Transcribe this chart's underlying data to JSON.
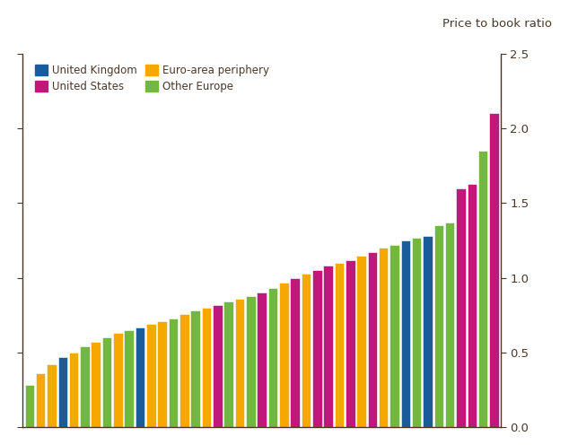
{
  "title": "Price to book ratio",
  "ylim": [
    0.0,
    2.5
  ],
  "yticks": [
    0.0,
    0.5,
    1.0,
    1.5,
    2.0,
    2.5
  ],
  "legend": [
    {
      "label": "United Kingdom",
      "color": "#1a5c9a"
    },
    {
      "label": "United States",
      "color": "#c0187a"
    },
    {
      "label": "Euro-area periphery",
      "color": "#f5a800"
    },
    {
      "label": "Other Europe",
      "color": "#72b840"
    }
  ],
  "bars": [
    {
      "value": 0.28,
      "color": "#72b840"
    },
    {
      "value": 0.36,
      "color": "#f5a800"
    },
    {
      "value": 0.42,
      "color": "#f5a800"
    },
    {
      "value": 0.47,
      "color": "#1a5c9a"
    },
    {
      "value": 0.5,
      "color": "#f5a800"
    },
    {
      "value": 0.54,
      "color": "#72b840"
    },
    {
      "value": 0.57,
      "color": "#f5a800"
    },
    {
      "value": 0.6,
      "color": "#72b840"
    },
    {
      "value": 0.63,
      "color": "#f5a800"
    },
    {
      "value": 0.65,
      "color": "#72b840"
    },
    {
      "value": 0.67,
      "color": "#1a5c9a"
    },
    {
      "value": 0.69,
      "color": "#f5a800"
    },
    {
      "value": 0.71,
      "color": "#f5a800"
    },
    {
      "value": 0.73,
      "color": "#72b840"
    },
    {
      "value": 0.76,
      "color": "#f5a800"
    },
    {
      "value": 0.78,
      "color": "#72b840"
    },
    {
      "value": 0.8,
      "color": "#f5a800"
    },
    {
      "value": 0.82,
      "color": "#c0187a"
    },
    {
      "value": 0.84,
      "color": "#72b840"
    },
    {
      "value": 0.86,
      "color": "#f5a800"
    },
    {
      "value": 0.88,
      "color": "#72b840"
    },
    {
      "value": 0.9,
      "color": "#c0187a"
    },
    {
      "value": 0.93,
      "color": "#72b840"
    },
    {
      "value": 0.97,
      "color": "#f5a800"
    },
    {
      "value": 1.0,
      "color": "#c0187a"
    },
    {
      "value": 1.03,
      "color": "#f5a800"
    },
    {
      "value": 1.05,
      "color": "#c0187a"
    },
    {
      "value": 1.08,
      "color": "#c0187a"
    },
    {
      "value": 1.1,
      "color": "#f5a800"
    },
    {
      "value": 1.12,
      "color": "#c0187a"
    },
    {
      "value": 1.15,
      "color": "#f5a800"
    },
    {
      "value": 1.17,
      "color": "#c0187a"
    },
    {
      "value": 1.2,
      "color": "#f5a800"
    },
    {
      "value": 1.22,
      "color": "#72b840"
    },
    {
      "value": 1.25,
      "color": "#1a5c9a"
    },
    {
      "value": 1.27,
      "color": "#72b840"
    },
    {
      "value": 1.28,
      "color": "#1a5c9a"
    },
    {
      "value": 1.35,
      "color": "#72b840"
    },
    {
      "value": 1.37,
      "color": "#72b840"
    },
    {
      "value": 1.6,
      "color": "#c0187a"
    },
    {
      "value": 1.63,
      "color": "#c0187a"
    },
    {
      "value": 1.85,
      "color": "#72b840"
    },
    {
      "value": 2.1,
      "color": "#c0187a"
    }
  ],
  "background_color": "#ffffff",
  "border_color": "#4a3728",
  "tick_color": "#4a3728",
  "label_color": "#4a3728",
  "title_color": "#4a3728"
}
